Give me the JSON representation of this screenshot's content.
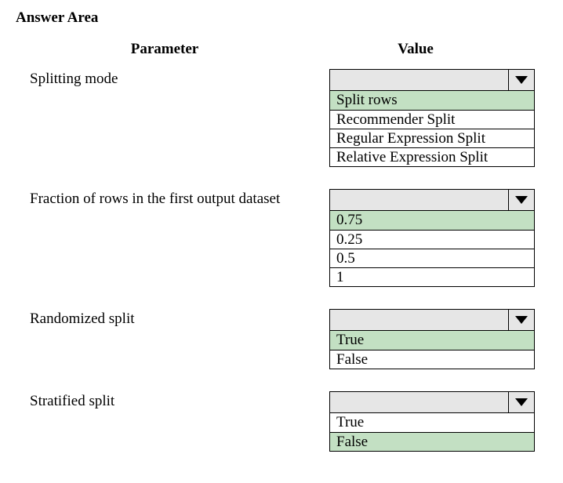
{
  "title": "Answer Area",
  "headers": {
    "parameter": "Parameter",
    "value": "Value"
  },
  "highlight_color": "#c3e0c3",
  "default_bg": "#ffffff",
  "rows": [
    {
      "label": "Splitting mode",
      "options": [
        {
          "text": "Split rows",
          "highlighted": true
        },
        {
          "text": "Recommender Split",
          "highlighted": false
        },
        {
          "text": "Regular Expression Split",
          "highlighted": false
        },
        {
          "text": "Relative Expression Split",
          "highlighted": false
        }
      ]
    },
    {
      "label": "Fraction of rows in the first output dataset",
      "options": [
        {
          "text": "0.75",
          "highlighted": true
        },
        {
          "text": "0.25",
          "highlighted": false
        },
        {
          "text": "0.5",
          "highlighted": false
        },
        {
          "text": "1",
          "highlighted": false
        }
      ]
    },
    {
      "label": "Randomized split",
      "options": [
        {
          "text": "True",
          "highlighted": true
        },
        {
          "text": "False",
          "highlighted": false
        }
      ]
    },
    {
      "label": "Stratified split",
      "options": [
        {
          "text": "True",
          "highlighted": false
        },
        {
          "text": "False",
          "highlighted": true
        }
      ]
    }
  ]
}
